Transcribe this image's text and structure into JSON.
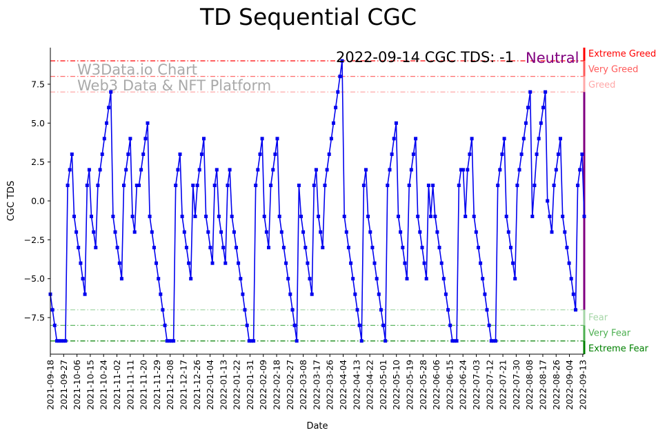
{
  "chart_data": {
    "type": "line",
    "title": "TD Sequential CGC",
    "xlabel": "Date",
    "ylabel": "CGC TDS",
    "ylim": [
      -9.85,
      9.85
    ],
    "yticks": [
      -7.5,
      -5.0,
      -2.5,
      0.0,
      2.5,
      5.0,
      7.5
    ],
    "ytick_labels": [
      "−7.5",
      "−5.0",
      "−2.5",
      "0.0",
      "2.5",
      "5.0",
      "7.5"
    ],
    "xticks": [
      "2021-09-18",
      "2021-09-27",
      "2021-10-06",
      "2021-10-15",
      "2021-10-24",
      "2021-11-02",
      "2021-11-11",
      "2021-11-20",
      "2021-11-29",
      "2021-12-08",
      "2021-12-17",
      "2021-12-26",
      "2022-01-04",
      "2022-01-13",
      "2022-01-22",
      "2022-01-31",
      "2022-02-09",
      "2022-02-18",
      "2022-02-27",
      "2022-03-08",
      "2022-03-17",
      "2022-03-26",
      "2022-04-04",
      "2022-04-13",
      "2022-04-22",
      "2022-05-01",
      "2022-05-10",
      "2022-05-19",
      "2022-05-28",
      "2022-06-06",
      "2022-06-15",
      "2022-06-24",
      "2022-07-03",
      "2022-07-12",
      "2022-07-21",
      "2022-07-30",
      "2022-08-08",
      "2022-08-17",
      "2022-08-26",
      "2022-09-04",
      "2022-09-13"
    ],
    "x_start_date": "2021-09-18",
    "x_end_date": "2022-09-14",
    "series": [
      {
        "name": "CGC TDS",
        "color": "#0000ee",
        "values": [
          -6,
          -7,
          -8,
          -9,
          -9,
          -9,
          -9,
          -9,
          1,
          2,
          3,
          -1,
          -2,
          -3,
          -4,
          -5,
          -6,
          1,
          2,
          -1,
          -2,
          -3,
          1,
          2,
          3,
          4,
          5,
          6,
          7,
          -1,
          -2,
          -3,
          -4,
          -5,
          1,
          2,
          3,
          4,
          -1,
          -2,
          1,
          1,
          2,
          3,
          4,
          5,
          -1,
          -2,
          -3,
          -4,
          -5,
          -6,
          -7,
          -8,
          -9,
          -9,
          -9,
          -9,
          1,
          2,
          3,
          -1,
          -2,
          -3,
          -4,
          -5,
          1,
          -1,
          1,
          2,
          3,
          4,
          -1,
          -2,
          -3,
          -4,
          1,
          2,
          -1,
          -2,
          -3,
          -4,
          1,
          2,
          -1,
          -2,
          -3,
          -4,
          -5,
          -6,
          -7,
          -8,
          -9,
          -9,
          -9,
          1,
          2,
          3,
          4,
          -1,
          -2,
          -3,
          1,
          2,
          3,
          4,
          -1,
          -2,
          -3,
          -4,
          -5,
          -6,
          -7,
          -8,
          -9,
          1,
          -1,
          -2,
          -3,
          -4,
          -5,
          -6,
          1,
          2,
          -1,
          -2,
          -3,
          1,
          2,
          3,
          4,
          5,
          6,
          7,
          8,
          9,
          -1,
          -2,
          -3,
          -4,
          -5,
          -6,
          -7,
          -8,
          -9,
          1,
          2,
          -1,
          -2,
          -3,
          -4,
          -5,
          -6,
          -7,
          -8,
          -9,
          1,
          2,
          3,
          4,
          5,
          -1,
          -2,
          -3,
          -4,
          -5,
          1,
          2,
          3,
          4,
          -1,
          -2,
          -3,
          -4,
          -5,
          1,
          -1,
          1,
          -1,
          -2,
          -3,
          -4,
          -5,
          -6,
          -7,
          -8,
          -9,
          -9,
          -9,
          1,
          2,
          2,
          -1,
          2,
          3,
          4,
          -1,
          -2,
          -3,
          -4,
          -5,
          -6,
          -7,
          -8,
          -9,
          -9,
          -9,
          1,
          2,
          3,
          4,
          -1,
          -2,
          -3,
          -4,
          -5,
          1,
          2,
          3,
          4,
          5,
          6,
          7,
          -1,
          1,
          3,
          4,
          5,
          6,
          7,
          0,
          -1,
          -2,
          1,
          2,
          3,
          4,
          -1,
          -2,
          -3,
          -4,
          -5,
          -6,
          -7,
          1,
          2,
          3,
          -1
        ]
      }
    ],
    "zones": [
      {
        "label": "Extreme Greed",
        "level": 9,
        "color": "#ff0000"
      },
      {
        "label": "Very Greed",
        "level": 8,
        "color": "#ff5a5a"
      },
      {
        "label": "Greed",
        "level": 7,
        "color": "#ffa8a8"
      },
      {
        "label": "Fear",
        "level": -7,
        "color": "#a5d6a7"
      },
      {
        "label": "Very Fear",
        "level": -8,
        "color": "#4caf50"
      },
      {
        "label": "Extreme Fear",
        "level": -9,
        "color": "#008000"
      }
    ],
    "sidebar_range": [
      -7,
      7
    ],
    "sidebar_color": "#800080",
    "watermark": [
      "W3Data.io Chart",
      "Web3 Data & NFT Platform"
    ],
    "status_text": "2022-09-14 CGC TDS: -1",
    "status_label": "Neutral",
    "status_label_color": "#800080"
  }
}
